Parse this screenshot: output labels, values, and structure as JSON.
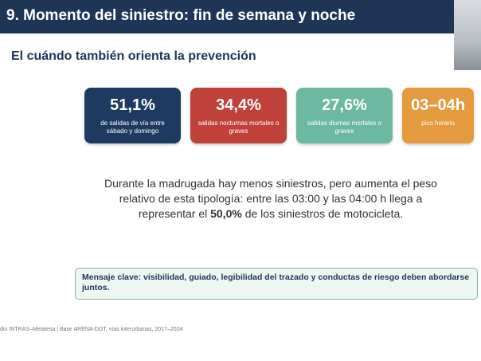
{
  "header": {
    "title": "9. Momento del siniestro: fin de semana y noche"
  },
  "subtitle": "El cuándo también orienta la prevención",
  "cards": [
    {
      "value": "51,1%",
      "label": "de salidas de vía entre sábado y domingo"
    },
    {
      "value": "34,4%",
      "label": "salidas nocturnas mortales o graves"
    },
    {
      "value": "27,6%",
      "label": "salidas diurnas mortales o graves"
    },
    {
      "value": "03–04h",
      "label": "pico horario"
    }
  ],
  "paragraph": {
    "before": "Durante la madrugada hay menos siniestros, pero aumenta el peso relativo de esta tipología: entre las 03:00 y las 04:00 h llega a representar el ",
    "bold": "50,0%",
    "after": " de los siniestros de motocicleta."
  },
  "message": "Mensaje clave: visibilidad, guiado, legibilidad del trazado y conductas de riesgo deben abordarse juntos.",
  "footer": "dio INTRAS–Metalesa | Base ARENA-DGT, vías interurbanas, 2017–2024"
}
